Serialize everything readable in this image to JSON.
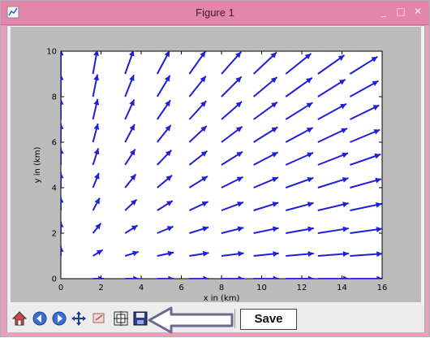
{
  "window": {
    "title": "Figure 1",
    "minimize_icon": "_",
    "maximize_icon": "□",
    "close_icon": "✕"
  },
  "toolbar": {
    "buttons": [
      "home-icon",
      "back-icon",
      "forward-icon",
      "pan-icon",
      "zoom-icon",
      "subplots-icon",
      "save-figure-icon"
    ],
    "annotation": "arrow pointing from Save label to save-figure button",
    "save_label": "Save"
  },
  "colors": {
    "arrow": "#1f1fd6",
    "titlebar": "#e486ab",
    "figure_bg": "#bcbcbc"
  },
  "chart_data": {
    "type": "quiver",
    "title": "",
    "xlabel": "x in (km)",
    "ylabel": "y in (km)",
    "xlim": [
      0,
      16
    ],
    "ylim": [
      0,
      10
    ],
    "xticks": [
      0,
      2,
      4,
      6,
      8,
      10,
      12,
      14,
      16
    ],
    "yticks": [
      0,
      2,
      4,
      6,
      8,
      10
    ],
    "grid": [
      [
        0,
        0
      ],
      [
        0,
        1
      ],
      [
        0,
        2
      ],
      [
        0,
        3
      ],
      [
        0,
        4
      ],
      [
        0,
        5
      ],
      [
        0,
        6
      ],
      [
        0,
        7
      ],
      [
        0,
        8
      ],
      [
        0,
        9
      ],
      [
        0,
        10
      ],
      [
        1.6,
        0
      ],
      [
        1.6,
        1
      ],
      [
        1.6,
        2
      ],
      [
        1.6,
        3
      ],
      [
        1.6,
        4
      ],
      [
        1.6,
        5
      ],
      [
        1.6,
        6
      ],
      [
        1.6,
        7
      ],
      [
        1.6,
        8
      ],
      [
        1.6,
        9
      ],
      [
        1.6,
        10
      ],
      [
        3.2,
        0
      ],
      [
        3.2,
        1
      ],
      [
        3.2,
        2
      ],
      [
        3.2,
        3
      ],
      [
        3.2,
        4
      ],
      [
        3.2,
        5
      ],
      [
        3.2,
        6
      ],
      [
        3.2,
        7
      ],
      [
        3.2,
        8
      ],
      [
        3.2,
        9
      ],
      [
        3.2,
        10
      ],
      [
        4.8,
        0
      ],
      [
        4.8,
        1
      ],
      [
        4.8,
        2
      ],
      [
        4.8,
        3
      ],
      [
        4.8,
        4
      ],
      [
        4.8,
        5
      ],
      [
        4.8,
        6
      ],
      [
        4.8,
        7
      ],
      [
        4.8,
        8
      ],
      [
        4.8,
        9
      ],
      [
        4.8,
        10
      ],
      [
        6.4,
        0
      ],
      [
        6.4,
        1
      ],
      [
        6.4,
        2
      ],
      [
        6.4,
        3
      ],
      [
        6.4,
        4
      ],
      [
        6.4,
        5
      ],
      [
        6.4,
        6
      ],
      [
        6.4,
        7
      ],
      [
        6.4,
        8
      ],
      [
        6.4,
        9
      ],
      [
        6.4,
        10
      ],
      [
        8.0,
        0
      ],
      [
        8.0,
        1
      ],
      [
        8.0,
        2
      ],
      [
        8.0,
        3
      ],
      [
        8.0,
        4
      ],
      [
        8.0,
        5
      ],
      [
        8.0,
        6
      ],
      [
        8.0,
        7
      ],
      [
        8.0,
        8
      ],
      [
        8.0,
        9
      ],
      [
        8.0,
        10
      ],
      [
        9.6,
        0
      ],
      [
        9.6,
        1
      ],
      [
        9.6,
        2
      ],
      [
        9.6,
        3
      ],
      [
        9.6,
        4
      ],
      [
        9.6,
        5
      ],
      [
        9.6,
        6
      ],
      [
        9.6,
        7
      ],
      [
        9.6,
        8
      ],
      [
        9.6,
        9
      ],
      [
        9.6,
        10
      ],
      [
        11.2,
        0
      ],
      [
        11.2,
        1
      ],
      [
        11.2,
        2
      ],
      [
        11.2,
        3
      ],
      [
        11.2,
        4
      ],
      [
        11.2,
        5
      ],
      [
        11.2,
        6
      ],
      [
        11.2,
        7
      ],
      [
        11.2,
        8
      ],
      [
        11.2,
        9
      ],
      [
        11.2,
        10
      ],
      [
        12.8,
        0
      ],
      [
        12.8,
        1
      ],
      [
        12.8,
        2
      ],
      [
        12.8,
        3
      ],
      [
        12.8,
        4
      ],
      [
        12.8,
        5
      ],
      [
        12.8,
        6
      ],
      [
        12.8,
        7
      ],
      [
        12.8,
        8
      ],
      [
        12.8,
        9
      ],
      [
        12.8,
        10
      ],
      [
        14.4,
        0
      ],
      [
        14.4,
        1
      ],
      [
        14.4,
        2
      ],
      [
        14.4,
        3
      ],
      [
        14.4,
        4
      ],
      [
        14.4,
        5
      ],
      [
        14.4,
        6
      ],
      [
        14.4,
        7
      ],
      [
        14.4,
        8
      ],
      [
        14.4,
        9
      ],
      [
        14.4,
        10
      ],
      [
        16.0,
        0
      ],
      [
        16.0,
        1
      ],
      [
        16.0,
        2
      ],
      [
        16.0,
        3
      ],
      [
        16.0,
        4
      ],
      [
        16.0,
        5
      ],
      [
        16.0,
        6
      ],
      [
        16.0,
        7
      ],
      [
        16.0,
        8
      ],
      [
        16.0,
        9
      ],
      [
        16.0,
        10
      ]
    ],
    "field": "radial from origin",
    "color": "#1f1fd6"
  }
}
